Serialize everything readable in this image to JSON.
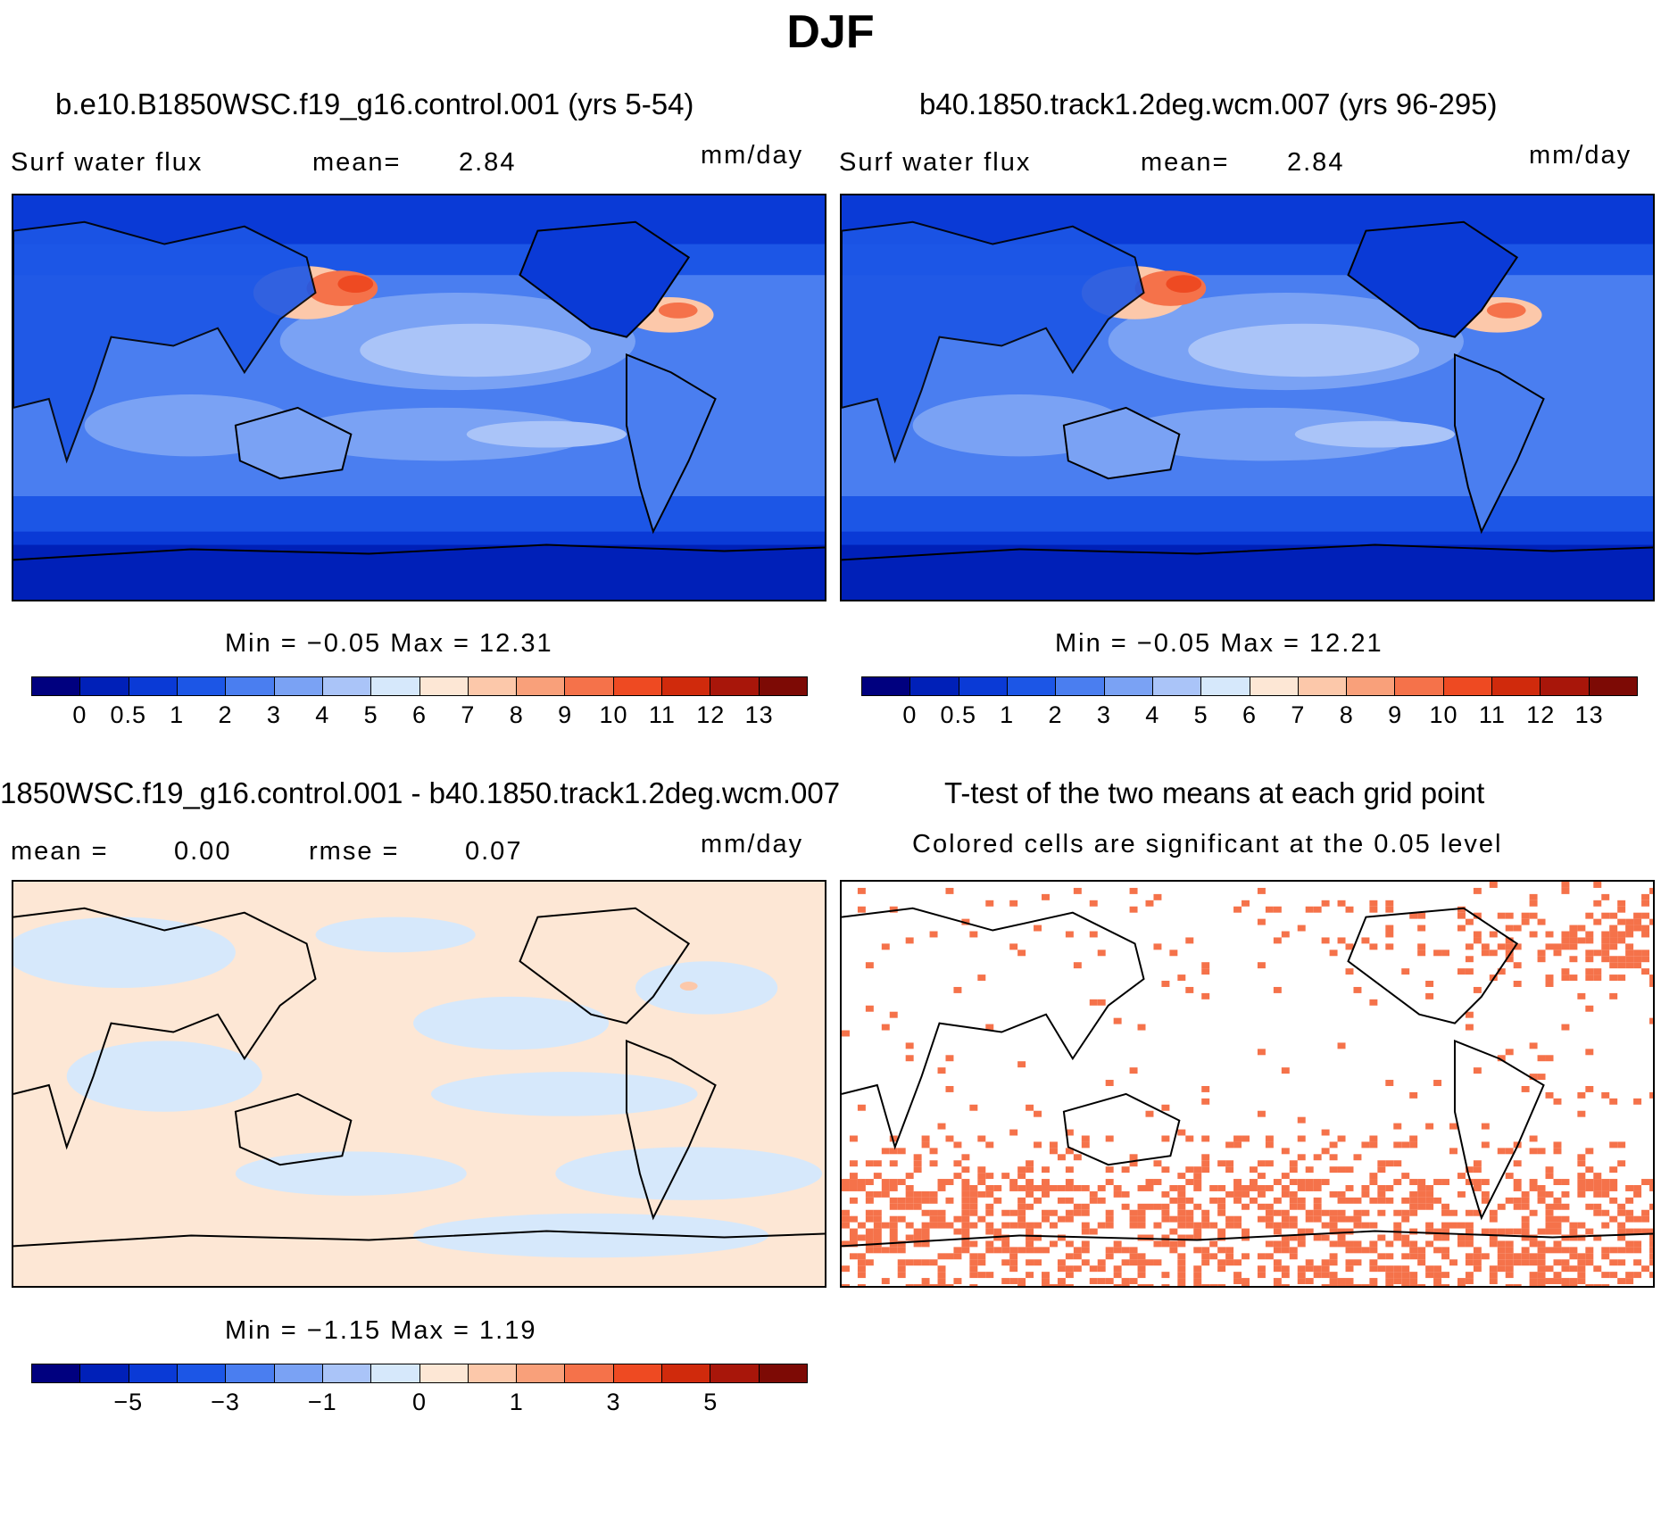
{
  "figure_title": "DJF",
  "panels": {
    "p1": {
      "title": "b.e10.B1850WSC.f19_g16.control.001 (yrs 5-54)",
      "variable": "Surf water flux",
      "mean_label": "mean=",
      "mean_value": "2.84",
      "units": "mm/day",
      "minmax": "Min =  −0.05 Max =  12.31"
    },
    "p2": {
      "title": "b40.1850.track1.2deg.wcm.007 (yrs 96-295)",
      "variable": "Surf water flux",
      "mean_label": "mean=",
      "mean_value": "2.84",
      "units": "mm/day",
      "minmax": "Min =  −0.05 Max =  12.21"
    },
    "p3": {
      "title": "1850WSC.f19_g16.control.001 - b40.1850.track1.2deg.wcm.007",
      "mean_label": "mean =",
      "mean_value": "0.00",
      "rmse_label": "rmse =",
      "rmse_value": "0.07",
      "units": "mm/day",
      "minmax": "Min =  −1.15 Max =   1.19"
    },
    "p4": {
      "title": "T-test of the two means at each grid point",
      "subtitle": "Colored cells are significant at the 0.05 level"
    }
  },
  "colorbar_abs": {
    "colors": [
      "#00007f",
      "#0020b8",
      "#0a3ad6",
      "#1c56e6",
      "#4a7ef0",
      "#7aa2f4",
      "#aac4f8",
      "#d6e8fb",
      "#fde7d5",
      "#fcc8aa",
      "#f9a07a",
      "#f5724a",
      "#ee4a22",
      "#d02a0c",
      "#a8160a",
      "#7d0a05"
    ],
    "ticks": [
      "0",
      "0.5",
      "1",
      "2",
      "3",
      "4",
      "5",
      "6",
      "7",
      "8",
      "9",
      "10",
      "11",
      "12",
      "13"
    ]
  },
  "colorbar_diff": {
    "colors": [
      "#00007f",
      "#0020b8",
      "#0a3ad6",
      "#1c56e6",
      "#4a7ef0",
      "#7aa2f4",
      "#aac4f8",
      "#d6e8fb",
      "#fde7d5",
      "#fcc8aa",
      "#f9a07a",
      "#f5724a",
      "#ee4a22",
      "#d02a0c",
      "#a8160a",
      "#7d0a05"
    ],
    "ticks": [
      "−5",
      "−3",
      "−1",
      "0",
      "1",
      "3",
      "5"
    ]
  },
  "colors": {
    "ocean_deep": "#0a3ad6",
    "ocean_mid": "#4a7ef0",
    "ocean_light": "#aac4f8",
    "peak": "#ee4a22",
    "diff_neg": "#d6e8fb",
    "diff_pos": "#fde7d5",
    "significant": "#f5724a"
  }
}
